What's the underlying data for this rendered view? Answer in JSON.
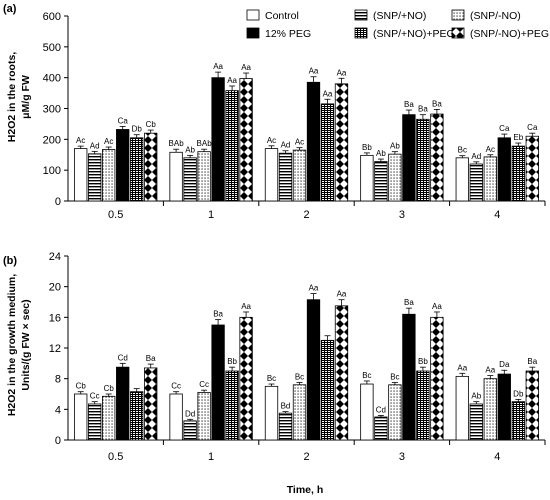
{
  "chart_data": [
    {
      "panel": "(a)",
      "type": "bar",
      "ylabel_line1": "H2O2 in the roots,",
      "ylabel_line2": "μM/g FW",
      "categories": [
        "0.5",
        "1",
        "2",
        "3",
        "4"
      ],
      "ylim": [
        0,
        600
      ],
      "yticks": [
        "0",
        "100",
        "200",
        "300",
        "400",
        "500",
        "600"
      ],
      "series": [
        {
          "name": "Control",
          "values": [
            170,
            158,
            170,
            148,
            140
          ],
          "errors": [
            8,
            10,
            9,
            8,
            7
          ],
          "letters": [
            "Ac",
            "BAb",
            "Ac",
            "Bb",
            "Bc"
          ]
        },
        {
          "name": "(SNP/+NO)",
          "values": [
            153,
            140,
            155,
            128,
            120
          ],
          "errors": [
            8,
            8,
            8,
            8,
            7
          ],
          "letters": [
            "Ad",
            "Ab",
            "Ad",
            "Ab",
            "Ad"
          ]
        },
        {
          "name": "(SNP/-NO)",
          "values": [
            167,
            160,
            165,
            152,
            143
          ],
          "errors": [
            8,
            8,
            8,
            8,
            7
          ],
          "letters": [
            "Ac",
            "BAb",
            "Ac",
            "Ab",
            "Ac"
          ]
        },
        {
          "name": "12% PEG",
          "values": [
            232,
            400,
            385,
            280,
            205
          ],
          "errors": [
            10,
            18,
            18,
            15,
            12
          ],
          "letters": [
            "Ca",
            "Aa",
            "Aa",
            "Ba",
            "Ca"
          ]
        },
        {
          "name": "(SNP/+NO)+PEG",
          "values": [
            205,
            358,
            315,
            265,
            178
          ],
          "errors": [
            10,
            15,
            15,
            15,
            10
          ],
          "letters": [
            "Db",
            "Aa",
            "Aa",
            "Ba",
            "Eb"
          ]
        },
        {
          "name": "(SNP/-NO)+PEG",
          "values": [
            220,
            397,
            380,
            282,
            210
          ],
          "errors": [
            10,
            18,
            18,
            15,
            10
          ],
          "letters": [
            "Cb",
            "Aa",
            "Aa",
            "Ba",
            "Ca"
          ]
        }
      ]
    },
    {
      "panel": "(b)",
      "type": "bar",
      "ylabel_line1": "H2O2 in the growth medium,",
      "ylabel_line2": "Units/(g FW × sec)",
      "xlabel": "Time, h",
      "categories": [
        "0.5",
        "1",
        "2",
        "3",
        "4"
      ],
      "ylim": [
        0,
        24
      ],
      "yticks": [
        "0",
        "4",
        "8",
        "12",
        "16",
        "20",
        "24"
      ],
      "series": [
        {
          "name": "Control",
          "values": [
            6.0,
            6.0,
            7.0,
            7.3,
            8.3
          ],
          "errors": [
            0.3,
            0.3,
            0.3,
            0.4,
            0.4
          ],
          "letters": [
            "Cb",
            "Cc",
            "Bc",
            "Bc",
            "Aa"
          ]
        },
        {
          "name": "(SNP/+NO)",
          "values": [
            4.7,
            2.5,
            3.5,
            3.0,
            4.7
          ],
          "errors": [
            0.3,
            0.2,
            0.2,
            0.2,
            0.3
          ],
          "letters": [
            "Cc",
            "Dd",
            "Bd",
            "Cd",
            "Ab"
          ]
        },
        {
          "name": "(SNP/-NO)",
          "values": [
            5.7,
            6.2,
            7.2,
            7.2,
            8.0
          ],
          "errors": [
            0.3,
            0.3,
            0.3,
            0.3,
            0.4
          ],
          "letters": [
            "Cb",
            "Cc",
            "Bc",
            "Bc",
            "Aa"
          ]
        },
        {
          "name": "12% PEG",
          "values": [
            9.5,
            15.0,
            18.3,
            16.4,
            8.6
          ],
          "errors": [
            0.5,
            0.7,
            0.8,
            0.8,
            0.5
          ],
          "letters": [
            "Cd",
            "Ba",
            "Aa",
            "Ba",
            "Da"
          ]
        },
        {
          "name": "(SNP/+NO)+PEG",
          "values": [
            6.3,
            9.0,
            13.0,
            9.0,
            5.0
          ],
          "errors": [
            0.4,
            0.5,
            0.6,
            0.5,
            0.3
          ],
          "letters": [
            "",
            "Bb",
            "",
            "Bb",
            "Db"
          ]
        },
        {
          "name": "(SNP/-NO)+PEG",
          "values": [
            9.4,
            16.0,
            17.5,
            16.0,
            9.0
          ],
          "errors": [
            0.5,
            0.7,
            0.8,
            0.7,
            0.5
          ],
          "letters": [
            "Ba",
            "Aa",
            "Aa",
            "Aa",
            "Ba"
          ]
        }
      ]
    }
  ],
  "legend": [
    "Control",
    "(SNP/+NO)",
    "(SNP/-NO)",
    "12% PEG",
    "(SNP/+NO)+PEG",
    "(SNP/-NO)+PEG"
  ],
  "legend_placement": "top-right"
}
